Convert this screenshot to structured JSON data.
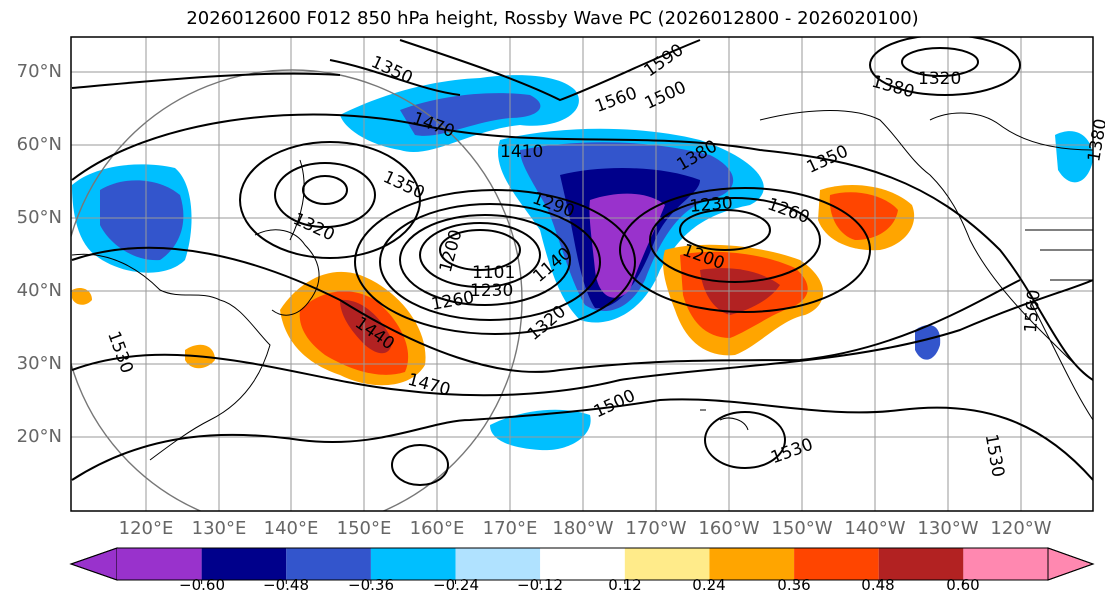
{
  "title": "2026012600 F012 850 hPa height, Rossby Wave PC (2026012800 - 2026020100)",
  "lat_labels": [
    "70°N",
    "60°N",
    "50°N",
    "40°N",
    "30°N",
    "20°N"
  ],
  "lon_labels": [
    "120°E",
    "130°E",
    "140°E",
    "150°E",
    "160°E",
    "170°E",
    "180°W",
    "170°W",
    "160°W",
    "150°W",
    "140°W",
    "130°W",
    "120°W"
  ],
  "contour_labels": [
    "1530",
    "1560",
    "1590",
    "1500",
    "1350",
    "1380",
    "1320",
    "1380",
    "1470",
    "1410",
    "1380",
    "1350",
    "1290",
    "1230",
    "1260",
    "1350",
    "1320",
    "1200",
    "1200",
    "1260",
    "1230",
    "1140",
    "1101",
    "1440",
    "1470",
    "1500",
    "1530",
    "1530",
    "1530",
    "1560",
    "1320"
  ],
  "colorbar": {
    "ticks": [
      "−0.60",
      "−0.48",
      "−0.36",
      "−0.24",
      "−0.12",
      "0.12",
      "0.24",
      "0.36",
      "0.48",
      "0.60"
    ],
    "colors": [
      "#9932CC",
      "#00008B",
      "#3355CC",
      "#00BFFF",
      "#B0E2FF",
      "#FFFFFF",
      "#FFEB8A",
      "#FFA500",
      "#FF4500",
      "#B22222",
      "#FF88B0"
    ],
    "under_color": "#9932CC",
    "over_color": "#FF88B0"
  }
}
